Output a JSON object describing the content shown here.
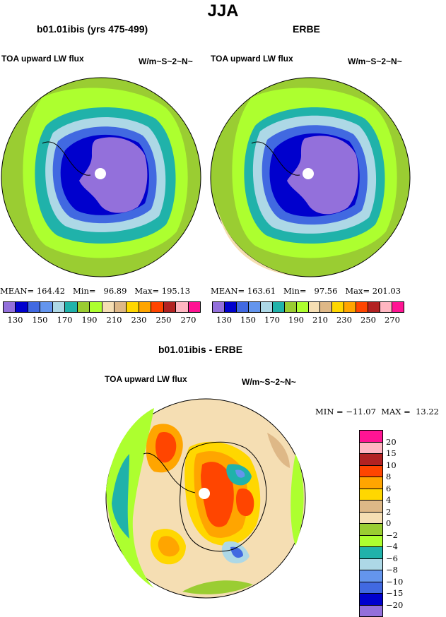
{
  "title": "JJA",
  "panels": [
    {
      "subtitle": "b01.01ibis (yrs 475-499)",
      "field": "TOA upward LW flux",
      "units": "W/m~S~2~N~",
      "stats": "MEAN= 164.42   Min=   96.89   Max= 195.13"
    },
    {
      "subtitle": "ERBE",
      "field": "TOA upward LW flux",
      "units": "W/m~S~2~N~",
      "stats": "MEAN= 163.61   Min=   97.56   Max= 201.03"
    }
  ],
  "top_colorbar": {
    "colors": [
      "#9370db",
      "#0000cd",
      "#4169e1",
      "#6495ed",
      "#add8e6",
      "#20b2aa",
      "#9acd32",
      "#adff2f",
      "#f5deb3",
      "#deb887",
      "#ffd700",
      "#ffa500",
      "#ff4500",
      "#b22222",
      "#ffb6c1",
      "#ff1493"
    ],
    "labels": [
      "130",
      "150",
      "170",
      "190",
      "210",
      "230",
      "250",
      "270"
    ]
  },
  "diff": {
    "subtitle": "b01.01ibis - ERBE",
    "field": "TOA upward LW flux",
    "units": "W/m~S~2~N~",
    "stats": "MIN = −11.07  MAX =  13.22",
    "colors": [
      "#ff1493",
      "#ffb6c1",
      "#b22222",
      "#ff4500",
      "#ffa500",
      "#ffd700",
      "#deb887",
      "#f5deb3",
      "#9acd32",
      "#adff2f",
      "#20b2aa",
      "#add8e6",
      "#6495ed",
      "#4169e1",
      "#0000cd",
      "#9370db"
    ],
    "labels": [
      "20",
      "15",
      "10",
      "8",
      "6",
      "4",
      "2",
      "0",
      "−2",
      "−4",
      "−6",
      "−8",
      "−10",
      "−15",
      "−20"
    ]
  }
}
